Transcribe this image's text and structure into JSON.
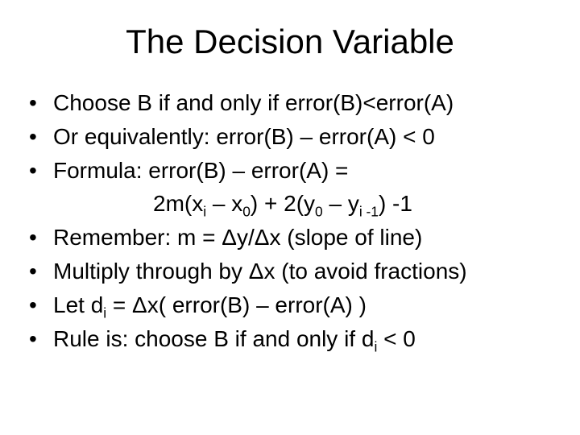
{
  "title": "The Decision Variable",
  "bullets": {
    "b0": "Choose  B  if and only if  error(B)<error(A)",
    "b1": "Or equivalently:   error(B) – error(A) < 0",
    "b2": "Formula:  error(B) – error(A) =",
    "b3": "Remember:  m = Δy/Δx   (slope of line)",
    "b4": "Multiply through by Δx (to avoid fractions)",
    "b6": "Rule is: choose B if and only if  d"
  },
  "formula": {
    "p1": "2m(x",
    "p2": " – x",
    "p3": ") + 2(y",
    "p4": " – y",
    "p5": ") -1",
    "sub_i": "i",
    "sub_0a": "0",
    "sub_0b": "0",
    "sub_im1": "i -1"
  },
  "b5": {
    "p1": "Let  d",
    "p2": " =  Δx( error(B) – error(A) )",
    "sub_i": "i"
  },
  "b6tail": {
    "sub_i": "i",
    "tail": " < 0"
  },
  "style": {
    "background_color": "#ffffff",
    "text_color": "#000000",
    "title_fontsize": 42,
    "body_fontsize": 28,
    "font_family": "Arial"
  }
}
